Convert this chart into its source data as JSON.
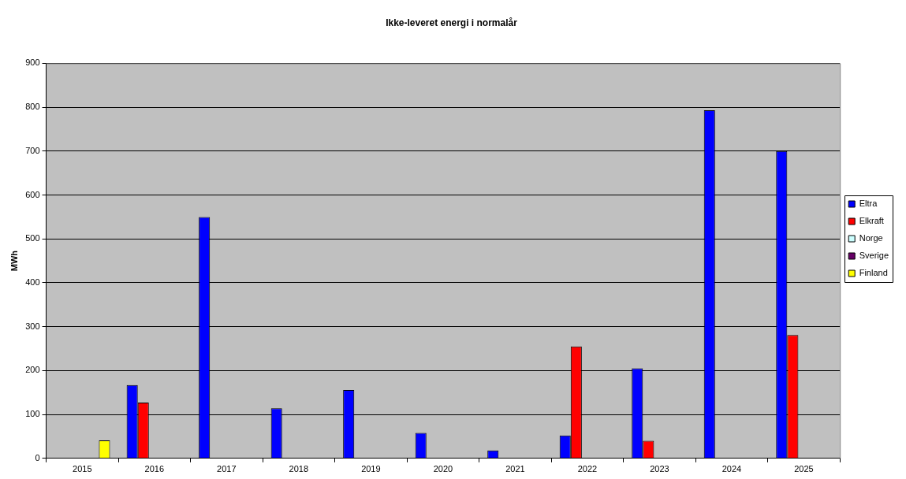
{
  "chart_data": {
    "type": "bar",
    "title": "Ikke-leveret energi i normalår",
    "ylabel": "MWh",
    "categories": [
      "2015",
      "2016",
      "2017",
      "2018",
      "2019",
      "2020",
      "2021",
      "2022",
      "2023",
      "2024",
      "2025"
    ],
    "series": [
      {
        "name": "Eltra",
        "color": "#0000ff",
        "values": [
          null,
          167,
          550,
          114,
          156,
          58,
          18,
          52,
          205,
          793,
          700
        ]
      },
      {
        "name": "Elkraft",
        "color": "#ff0000",
        "values": [
          null,
          127,
          null,
          null,
          null,
          null,
          null,
          255,
          40,
          null,
          281
        ]
      },
      {
        "name": "Norge",
        "color": "#ccffff",
        "values": [
          null,
          null,
          null,
          null,
          null,
          null,
          null,
          null,
          null,
          null,
          null
        ]
      },
      {
        "name": "Sverige",
        "color": "#660066",
        "values": [
          null,
          null,
          null,
          null,
          null,
          null,
          null,
          null,
          null,
          null,
          null
        ]
      },
      {
        "name": "Finland",
        "color": "#ffff00",
        "values": [
          41,
          null,
          null,
          null,
          null,
          null,
          null,
          null,
          null,
          null,
          null
        ]
      }
    ],
    "ylim": [
      0,
      900
    ],
    "yticks": [
      0,
      100,
      200,
      300,
      400,
      500,
      600,
      700,
      800,
      900
    ],
    "grid": "y",
    "legend": "right"
  }
}
